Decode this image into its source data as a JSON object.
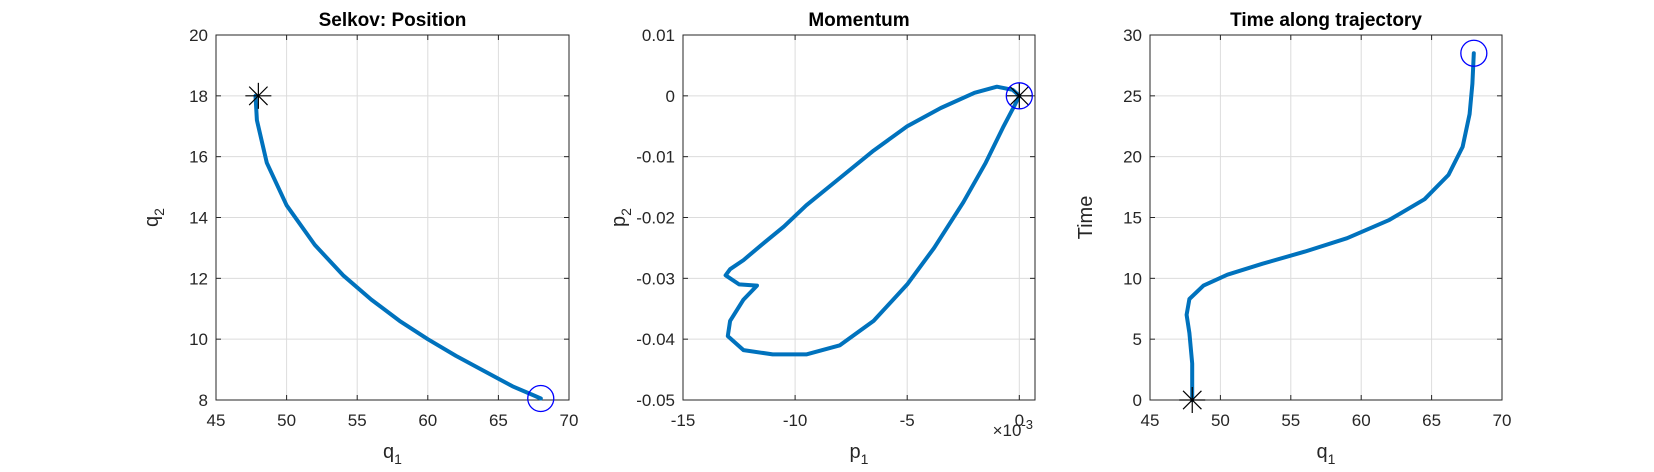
{
  "colors": {
    "line": "#0072BD",
    "start_marker": "#000000",
    "end_marker": "#0000FF",
    "grid": "#dcdcdc",
    "axes": "#262626"
  },
  "chart_data": [
    {
      "type": "line",
      "title": "Selkov: Position",
      "xlabel": "q",
      "xlabel_sub": "1",
      "ylabel": "q",
      "ylabel_sub": "2",
      "xlim": [
        45,
        70
      ],
      "ylim": [
        8,
        20
      ],
      "xticks": [
        45,
        50,
        55,
        60,
        65,
        70
      ],
      "yticks": [
        8,
        10,
        12,
        14,
        16,
        18,
        20
      ],
      "grid": true,
      "series": [
        {
          "x": [
            47.8,
            47.9,
            48.6,
            50.0,
            52.0,
            54.0,
            56.0,
            58.0,
            60.0,
            62.0,
            64.0,
            66.0,
            67.5,
            68.0
          ],
          "y": [
            18.0,
            17.2,
            15.8,
            14.4,
            13.1,
            12.1,
            11.3,
            10.6,
            10.0,
            9.45,
            8.95,
            8.45,
            8.15,
            8.05
          ]
        }
      ],
      "markers": [
        {
          "kind": "star",
          "name": "start",
          "x": 48.0,
          "y": 18.0
        },
        {
          "kind": "circle",
          "name": "end",
          "x": 68.0,
          "y": 8.05
        }
      ]
    },
    {
      "type": "line",
      "title": "Momentum",
      "xlabel": "p",
      "xlabel_sub": "1",
      "ylabel": "p",
      "ylabel_sub": "2",
      "x_multiplier": "×10",
      "x_multiplier_exp": "-3",
      "xlim": [
        -15,
        0.7
      ],
      "ylim": [
        -0.05,
        0.01
      ],
      "xticks": [
        -15,
        -10,
        -5,
        0
      ],
      "xtick_labels": [
        "-15",
        "-10",
        "-5",
        "0"
      ],
      "yticks": [
        -0.05,
        -0.04,
        -0.03,
        -0.02,
        -0.01,
        0,
        0.01
      ],
      "ytick_labels": [
        "-0.05",
        "-0.04",
        "-0.03",
        "-0.02",
        "-0.01",
        "0",
        "0.01"
      ],
      "grid": true,
      "series": [
        {
          "x": [
            0.0,
            -0.3,
            -1.0,
            -2.0,
            -3.5,
            -5.0,
            -6.5,
            -8.0,
            -9.5,
            -10.5,
            -11.5,
            -12.3,
            -12.9,
            -13.1,
            -12.5,
            -11.7,
            -12.3,
            -12.9,
            -13.0,
            -12.3,
            -11.0,
            -9.5,
            -8.0,
            -6.5,
            -5.0,
            -3.8,
            -2.5,
            -1.5,
            -0.7,
            -0.2,
            0.0
          ],
          "y": [
            0.0,
            0.001,
            0.0015,
            0.0005,
            -0.002,
            -0.005,
            -0.009,
            -0.0135,
            -0.018,
            -0.0215,
            -0.0245,
            -0.027,
            -0.0285,
            -0.0295,
            -0.031,
            -0.0312,
            -0.0335,
            -0.037,
            -0.0395,
            -0.0418,
            -0.0425,
            -0.0425,
            -0.041,
            -0.037,
            -0.031,
            -0.025,
            -0.0175,
            -0.011,
            -0.005,
            -0.0015,
            0.0
          ]
        }
      ],
      "markers": [
        {
          "kind": "star",
          "name": "start",
          "x": 0.0,
          "y": 0.0
        },
        {
          "kind": "circle",
          "name": "end",
          "x": 0.0,
          "y": 0.0
        }
      ]
    },
    {
      "type": "line",
      "title": "Time along trajectory",
      "xlabel": "q",
      "xlabel_sub": "1",
      "ylabel": "Time",
      "xlim": [
        45,
        70
      ],
      "ylim": [
        0,
        30
      ],
      "xticks": [
        45,
        50,
        55,
        60,
        65,
        70
      ],
      "yticks": [
        0,
        5,
        10,
        15,
        20,
        25,
        30
      ],
      "grid": true,
      "series": [
        {
          "x": [
            48.0,
            48.0,
            47.8,
            47.6,
            47.8,
            48.8,
            50.5,
            53.0,
            56.0,
            59.0,
            62.0,
            64.5,
            66.2,
            67.2,
            67.7,
            67.9,
            68.0
          ],
          "y": [
            0.0,
            3.0,
            5.5,
            7.0,
            8.3,
            9.4,
            10.3,
            11.2,
            12.2,
            13.3,
            14.8,
            16.5,
            18.5,
            20.8,
            23.5,
            26.0,
            28.5
          ]
        }
      ],
      "markers": [
        {
          "kind": "star",
          "name": "start",
          "x": 48.0,
          "y": 0.0
        },
        {
          "kind": "circle",
          "name": "end",
          "x": 68.0,
          "y": 28.5
        }
      ]
    }
  ]
}
